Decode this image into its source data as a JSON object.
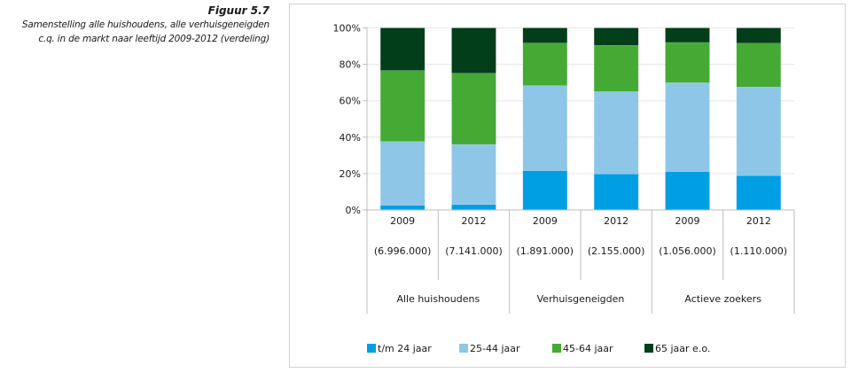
{
  "caption": {
    "figure_number": "Figuur 5.7",
    "title_line1": "Samenstelling alle huishoudens, alle verhuisgeneigden",
    "title_line2": "c.q. in de markt naar leeftijd 2009-2012 (verdeling)"
  },
  "chart_data": {
    "type": "bar",
    "stacked": true,
    "title": "Samenstelling alle huishoudens, alle verhuisgeneigden c.q. in de markt naar leeftijd 2009-2012 (verdeling)",
    "xlabel": "",
    "ylabel": "",
    "ylim": [
      0,
      100
    ],
    "yticks": [
      0,
      20,
      40,
      60,
      80,
      100
    ],
    "ytick_labels": [
      "0%",
      "20%",
      "40%",
      "60%",
      "80%",
      "100%"
    ],
    "grid": true,
    "legend_position": "bottom",
    "categories": [
      "2009",
      "2012",
      "2009",
      "2012",
      "2009",
      "2012"
    ],
    "category_counts": [
      "(6.996.000)",
      "(7.141.000)",
      "(1.891.000)",
      "(2.155.000)",
      "(1.056.000)",
      "(1.110.000)"
    ],
    "groups": [
      {
        "label": "Alle huishoudens",
        "span": [
          0,
          1
        ]
      },
      {
        "label": "Verhuisgeneigden",
        "span": [
          2,
          3
        ]
      },
      {
        "label": "Actieve zoekers",
        "span": [
          4,
          5
        ]
      }
    ],
    "series": [
      {
        "name": "t/m 24 jaar",
        "color": "#009fe3",
        "values": [
          2.6,
          3.0,
          21.6,
          19.8,
          21.1,
          18.9
        ]
      },
      {
        "name": "25-44 jaar",
        "color": "#8ec6e8",
        "values": [
          35.0,
          33.0,
          46.7,
          45.2,
          48.8,
          48.6
        ]
      },
      {
        "name": "45-64 jaar",
        "color": "#44aa33",
        "values": [
          39.0,
          39.1,
          23.4,
          25.4,
          22.1,
          24.1
        ]
      },
      {
        "name": "65 jaar e.o.",
        "color": "#023e1a",
        "values": [
          23.4,
          24.9,
          8.3,
          9.6,
          8.0,
          8.4
        ]
      }
    ]
  }
}
